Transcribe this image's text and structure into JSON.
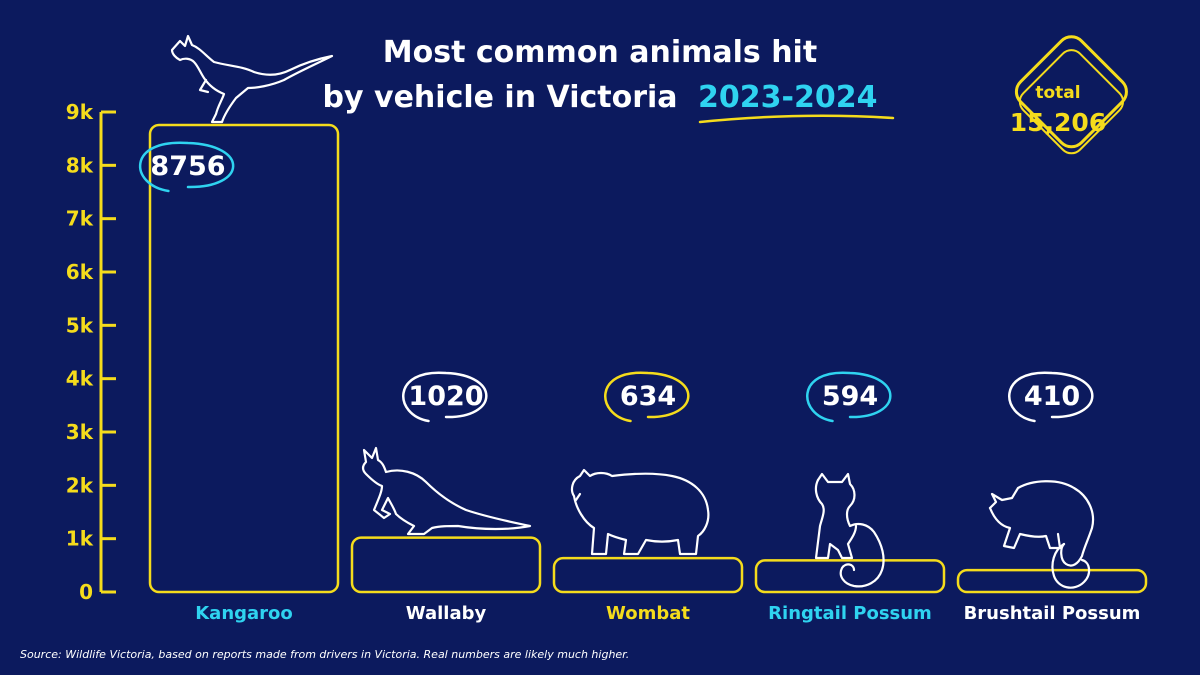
{
  "title": {
    "line1": "Most common animals hit",
    "line2": "by vehicle in Victoria",
    "year": "2023-2024"
  },
  "total": {
    "caption": "total",
    "value": "15,206"
  },
  "source": "Source: Wildlife Victoria, based on reports made from drivers in Victoria. Real numbers are likely much higher.",
  "colors": {
    "background": "#0c1a5e",
    "yellow": "#f5dc1c",
    "cyan": "#2fd3f0",
    "white": "#ffffff"
  },
  "chart_data": {
    "type": "bar",
    "title": "Most common animals hit by vehicle in Victoria 2023-2024",
    "categories": [
      "Kangaroo",
      "Wallaby",
      "Wombat",
      "Ringtail Possum",
      "Brushtail Possum"
    ],
    "values": [
      8756,
      1020,
      634,
      594,
      410
    ],
    "value_labels": [
      "8756",
      "1020",
      "634",
      "594",
      "410"
    ],
    "label_colors": [
      "cyan",
      "white",
      "yellow",
      "cyan",
      "white"
    ],
    "bubble_colors": [
      "cyan",
      "white",
      "yellow",
      "cyan",
      "white"
    ],
    "icons": [
      "kangaroo-icon",
      "wallaby-icon",
      "wombat-icon",
      "ringtail-possum-icon",
      "brushtail-possum-icon"
    ],
    "ylim": [
      0,
      9000
    ],
    "yticks": [
      0,
      1000,
      2000,
      3000,
      4000,
      5000,
      6000,
      7000,
      8000,
      9000
    ],
    "ytick_labels": [
      "0",
      "1k",
      "2k",
      "3k",
      "4k",
      "5k",
      "6k",
      "7k",
      "8k",
      "9k"
    ],
    "xlabel": "",
    "ylabel": "",
    "grid": false,
    "legend": "none"
  }
}
